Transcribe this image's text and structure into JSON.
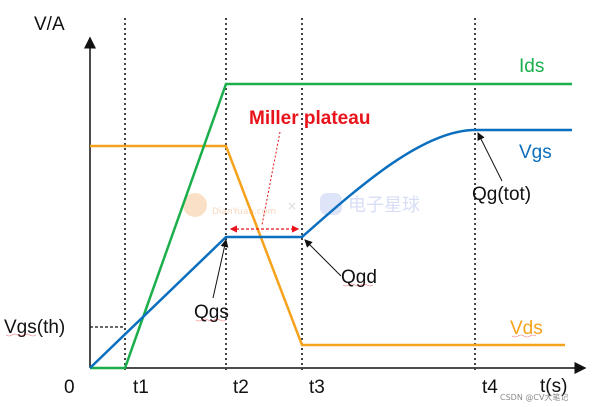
{
  "axes": {
    "y_label": "V/A",
    "x_label": "t(s)",
    "origin_label": "0",
    "vgs_th_label": "Vgs(th)",
    "time_ticks": [
      "t1",
      "t2",
      "t3",
      "t4"
    ]
  },
  "curves": {
    "ids": {
      "label": "Ids",
      "color": "#1aaf4b"
    },
    "vgs": {
      "label": "Vgs",
      "color": "#0b6fbf"
    },
    "vds": {
      "label": "Vds",
      "color": "#f5a21c"
    }
  },
  "annotations": {
    "miller_plateau": {
      "text": "Miller plateau",
      "color": "#e8131b"
    },
    "qgs": "Qgs",
    "qgd": "Qgd",
    "qg_tot": "Qg(tot)"
  },
  "watermarks": {
    "logo_cn": "电子星球",
    "logo_en": "DianYuan.com",
    "credit": "CSDN @CV大笔记"
  }
}
